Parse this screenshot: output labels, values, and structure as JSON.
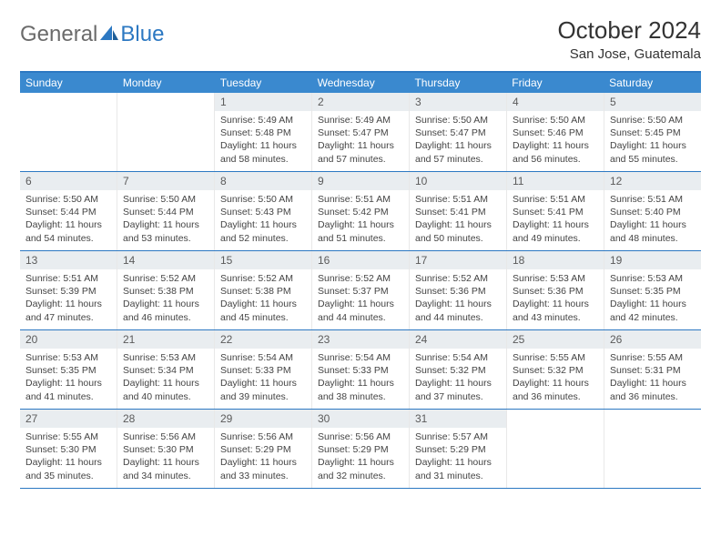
{
  "logo": {
    "general": "General",
    "blue": "Blue"
  },
  "title": "October 2024",
  "location": "San Jose, Guatemala",
  "colors": {
    "accent": "#3a89cf",
    "accent_border": "#2c78c2",
    "daynum_bg": "#e9edf0",
    "text": "#444444",
    "logo_gray": "#6b6b6b"
  },
  "dow": [
    "Sunday",
    "Monday",
    "Tuesday",
    "Wednesday",
    "Thursday",
    "Friday",
    "Saturday"
  ],
  "weeks": [
    [
      null,
      null,
      {
        "n": "1",
        "sr": "5:49 AM",
        "ss": "5:48 PM",
        "dl": "11 hours and 58 minutes."
      },
      {
        "n": "2",
        "sr": "5:49 AM",
        "ss": "5:47 PM",
        "dl": "11 hours and 57 minutes."
      },
      {
        "n": "3",
        "sr": "5:50 AM",
        "ss": "5:47 PM",
        "dl": "11 hours and 57 minutes."
      },
      {
        "n": "4",
        "sr": "5:50 AM",
        "ss": "5:46 PM",
        "dl": "11 hours and 56 minutes."
      },
      {
        "n": "5",
        "sr": "5:50 AM",
        "ss": "5:45 PM",
        "dl": "11 hours and 55 minutes."
      }
    ],
    [
      {
        "n": "6",
        "sr": "5:50 AM",
        "ss": "5:44 PM",
        "dl": "11 hours and 54 minutes."
      },
      {
        "n": "7",
        "sr": "5:50 AM",
        "ss": "5:44 PM",
        "dl": "11 hours and 53 minutes."
      },
      {
        "n": "8",
        "sr": "5:50 AM",
        "ss": "5:43 PM",
        "dl": "11 hours and 52 minutes."
      },
      {
        "n": "9",
        "sr": "5:51 AM",
        "ss": "5:42 PM",
        "dl": "11 hours and 51 minutes."
      },
      {
        "n": "10",
        "sr": "5:51 AM",
        "ss": "5:41 PM",
        "dl": "11 hours and 50 minutes."
      },
      {
        "n": "11",
        "sr": "5:51 AM",
        "ss": "5:41 PM",
        "dl": "11 hours and 49 minutes."
      },
      {
        "n": "12",
        "sr": "5:51 AM",
        "ss": "5:40 PM",
        "dl": "11 hours and 48 minutes."
      }
    ],
    [
      {
        "n": "13",
        "sr": "5:51 AM",
        "ss": "5:39 PM",
        "dl": "11 hours and 47 minutes."
      },
      {
        "n": "14",
        "sr": "5:52 AM",
        "ss": "5:38 PM",
        "dl": "11 hours and 46 minutes."
      },
      {
        "n": "15",
        "sr": "5:52 AM",
        "ss": "5:38 PM",
        "dl": "11 hours and 45 minutes."
      },
      {
        "n": "16",
        "sr": "5:52 AM",
        "ss": "5:37 PM",
        "dl": "11 hours and 44 minutes."
      },
      {
        "n": "17",
        "sr": "5:52 AM",
        "ss": "5:36 PM",
        "dl": "11 hours and 44 minutes."
      },
      {
        "n": "18",
        "sr": "5:53 AM",
        "ss": "5:36 PM",
        "dl": "11 hours and 43 minutes."
      },
      {
        "n": "19",
        "sr": "5:53 AM",
        "ss": "5:35 PM",
        "dl": "11 hours and 42 minutes."
      }
    ],
    [
      {
        "n": "20",
        "sr": "5:53 AM",
        "ss": "5:35 PM",
        "dl": "11 hours and 41 minutes."
      },
      {
        "n": "21",
        "sr": "5:53 AM",
        "ss": "5:34 PM",
        "dl": "11 hours and 40 minutes."
      },
      {
        "n": "22",
        "sr": "5:54 AM",
        "ss": "5:33 PM",
        "dl": "11 hours and 39 minutes."
      },
      {
        "n": "23",
        "sr": "5:54 AM",
        "ss": "5:33 PM",
        "dl": "11 hours and 38 minutes."
      },
      {
        "n": "24",
        "sr": "5:54 AM",
        "ss": "5:32 PM",
        "dl": "11 hours and 37 minutes."
      },
      {
        "n": "25",
        "sr": "5:55 AM",
        "ss": "5:32 PM",
        "dl": "11 hours and 36 minutes."
      },
      {
        "n": "26",
        "sr": "5:55 AM",
        "ss": "5:31 PM",
        "dl": "11 hours and 36 minutes."
      }
    ],
    [
      {
        "n": "27",
        "sr": "5:55 AM",
        "ss": "5:30 PM",
        "dl": "11 hours and 35 minutes."
      },
      {
        "n": "28",
        "sr": "5:56 AM",
        "ss": "5:30 PM",
        "dl": "11 hours and 34 minutes."
      },
      {
        "n": "29",
        "sr": "5:56 AM",
        "ss": "5:29 PM",
        "dl": "11 hours and 33 minutes."
      },
      {
        "n": "30",
        "sr": "5:56 AM",
        "ss": "5:29 PM",
        "dl": "11 hours and 32 minutes."
      },
      {
        "n": "31",
        "sr": "5:57 AM",
        "ss": "5:29 PM",
        "dl": "11 hours and 31 minutes."
      },
      null,
      null
    ]
  ],
  "labels": {
    "sunrise": "Sunrise: ",
    "sunset": "Sunset: ",
    "daylight": "Daylight: "
  }
}
